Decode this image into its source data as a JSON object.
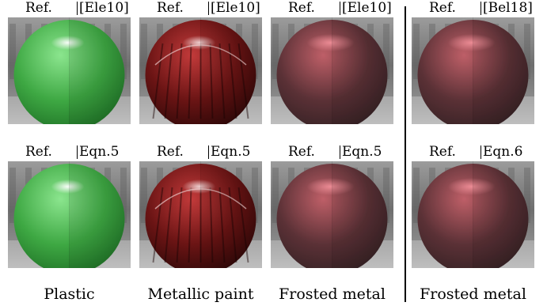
{
  "columns": [
    {
      "caption": "Plastic",
      "material": "plastic",
      "rows": [
        {
          "left_label": "Ref.",
          "right_label": "[Ele10]"
        },
        {
          "left_label": "Ref.",
          "right_label": "Eqn.5"
        }
      ]
    },
    {
      "caption": "Metallic paint",
      "material": "metallic",
      "rows": [
        {
          "left_label": "Ref.",
          "right_label": "[Ele10]"
        },
        {
          "left_label": "Ref.",
          "right_label": "Eqn.5"
        }
      ]
    },
    {
      "caption": "Frosted metal",
      "material": "frosted",
      "rows": [
        {
          "left_label": "Ref.",
          "right_label": "[Ele10]"
        },
        {
          "left_label": "Ref.",
          "right_label": "Eqn.5"
        }
      ]
    },
    {
      "caption": "Frosted metal",
      "material": "frosted",
      "rows": [
        {
          "left_label": "Ref.",
          "right_label": "[Bel18]"
        },
        {
          "left_label": "Ref.",
          "right_label": "Eqn.6"
        }
      ]
    }
  ],
  "materials": {
    "plastic": {
      "light": "#8be58e",
      "mid": "#3ea843",
      "dark": "#1d6e24",
      "spec": "#ffffff"
    },
    "metallic": {
      "light": "#c23a3a",
      "mid": "#6a1414",
      "dark": "#2a0707",
      "spec": "#f0d7d7"
    },
    "frosted": {
      "light": "#e0707a",
      "mid": "#6b3a40",
      "dark": "#3b2629",
      "spec": "#ff9aa4"
    }
  }
}
